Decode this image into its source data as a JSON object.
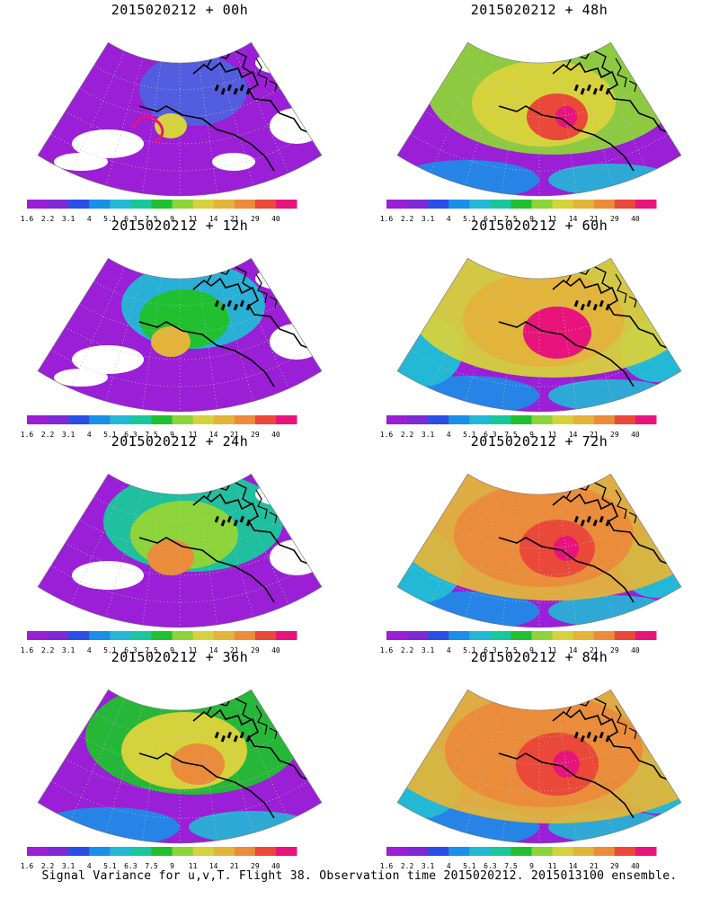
{
  "colors": {
    "scale": [
      "#9a1fd6",
      "#7f29d6",
      "#2a4fe6",
      "#1a8fe8",
      "#22b8d6",
      "#18c89c",
      "#20c030",
      "#8cd43a",
      "#d6d23c",
      "#e2b43a",
      "#ea8c3a",
      "#ea4838",
      "#e8147c"
    ],
    "missing": "#ffffff",
    "coast": "#000000"
  },
  "colorbar": {
    "labels": [
      "1.6",
      "2.2",
      "3.1",
      "4",
      "5.1",
      "6.3",
      "7.5",
      "9",
      "11",
      "14",
      "21",
      "29",
      "40"
    ]
  },
  "panels": [
    {
      "title": "2015020212 + 00h",
      "level": 0
    },
    {
      "title": "2015020212 + 48h",
      "level": 4
    },
    {
      "title": "2015020212 + 12h",
      "level": 1
    },
    {
      "title": "2015020212 + 60h",
      "level": 5
    },
    {
      "title": "2015020212 + 24h",
      "level": 2
    },
    {
      "title": "2015020212 + 72h",
      "level": 6
    },
    {
      "title": "2015020212 + 36h",
      "level": 3
    },
    {
      "title": "2015020212 + 84h",
      "level": 7
    }
  ],
  "footer": "Signal Variance for u,v,T. Flight 38. Observation time 2015020212. 2015013100 ensemble."
}
